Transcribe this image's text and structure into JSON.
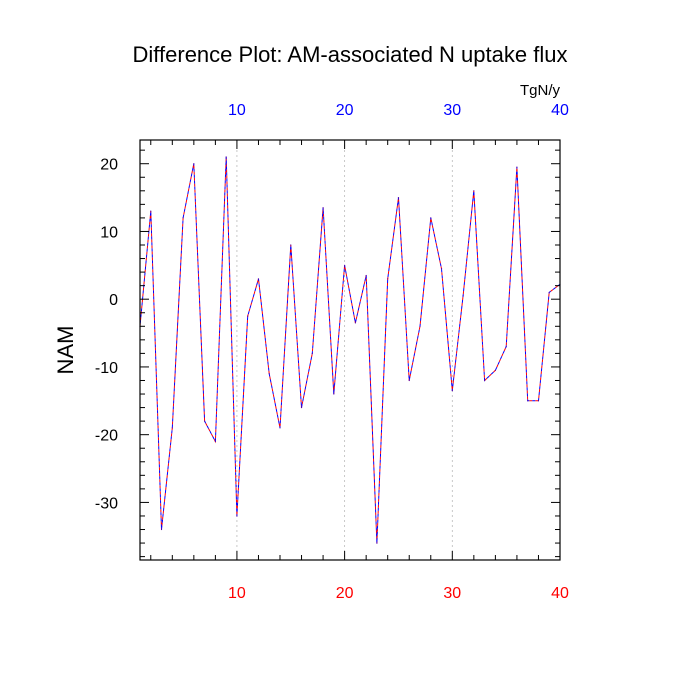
{
  "chart_data": {
    "type": "line",
    "title": "Difference Plot: AM-associated N uptake flux",
    "units_label": "TgN/y",
    "ylabel": "NAM",
    "xlabel": "",
    "xlim": [
      1,
      40
    ],
    "ylim": [
      -38.5,
      23.5
    ],
    "x_ticks_bottom": [
      10,
      20,
      30,
      40
    ],
    "x_ticks_top": [
      10,
      20,
      30,
      40
    ],
    "y_ticks": [
      -30,
      -20,
      -10,
      0,
      10,
      20
    ],
    "grid": "dashed vertical lines at x = 10, 20, 30",
    "colors": {
      "bottom_ticks": "#ff0000",
      "top_ticks": "#0000ff",
      "line_a": "#ff0000",
      "line_b": "#0000ff"
    },
    "series": [
      {
        "line_style": "dashed overlay (red/blue)",
        "x": [
          1,
          2,
          3,
          4,
          5,
          6,
          7,
          8,
          9,
          10,
          11,
          12,
          13,
          14,
          15,
          16,
          17,
          18,
          19,
          20,
          21,
          22,
          23,
          24,
          25,
          26,
          27,
          28,
          29,
          30,
          31,
          32,
          33,
          34,
          35,
          36,
          37,
          38,
          39,
          40
        ],
        "values": [
          -4,
          13,
          -34,
          -19,
          12,
          20,
          -18,
          -21,
          21,
          -32,
          -2.5,
          3,
          -11,
          -19,
          8,
          -16,
          -8,
          13.5,
          -14,
          5,
          -3.5,
          3.5,
          -36,
          3,
          15,
          -12,
          -4,
          12,
          4.5,
          -13.5,
          0.5,
          16,
          -12,
          -10.5,
          -7,
          19.5,
          -15,
          -15,
          1,
          2.2
        ]
      }
    ]
  }
}
